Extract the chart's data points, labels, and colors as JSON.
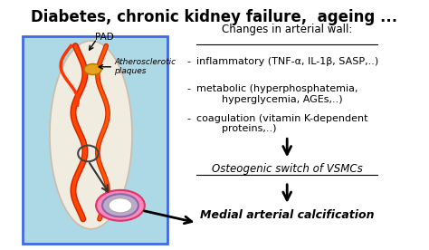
{
  "title": "Diabetes, chronic kidney failure,  ageing ...",
  "title_fontsize": 12,
  "bg_color": "#ffffff",
  "left_panel_bg": "#add8e6",
  "left_panel_border": "#4169e1",
  "changes_header": "Changes in arterial wall:",
  "bullet_items": [
    "inflammatory (TNF-α, IL-1β, SASP,..)",
    "metabolic (hyperphosphatemia,\n        hyperglycemia, AGEs,..)",
    "coagulation (vitamin K-dependent\n        proteins,..)"
  ],
  "osteogenic_text": "Osteogenic switch of VSMCs",
  "calcification_text": "Medial arterial calcification",
  "pad_label": "PAD",
  "plaque_label": "Atherosclerotic\nplaques"
}
